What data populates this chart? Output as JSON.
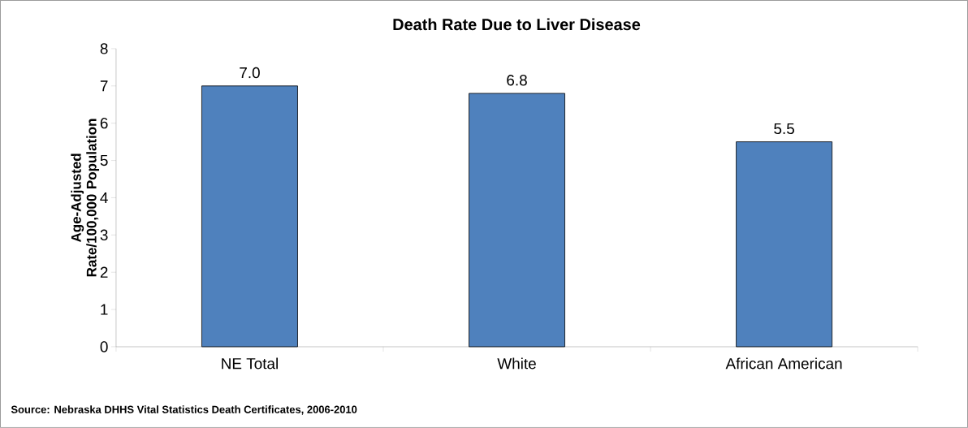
{
  "chart_data": {
    "type": "bar",
    "title": "Death Rate Due to Liver Disease",
    "ylabel": "Age-Adjusted Rate/100,000 Population",
    "categories": [
      "NE Total",
      "White",
      "African American"
    ],
    "values": [
      7.0,
      6.8,
      5.5
    ],
    "value_labels": [
      "7.0",
      "6.8",
      "5.5"
    ],
    "color": "#4f81bd",
    "ylim": [
      0,
      8
    ],
    "yticks": [
      0,
      1,
      2,
      3,
      4,
      5,
      6,
      7,
      8
    ],
    "annotations": [
      "Source: Nebraska DHHS Vital Statistics Death Certificates, 2006-2010"
    ]
  }
}
